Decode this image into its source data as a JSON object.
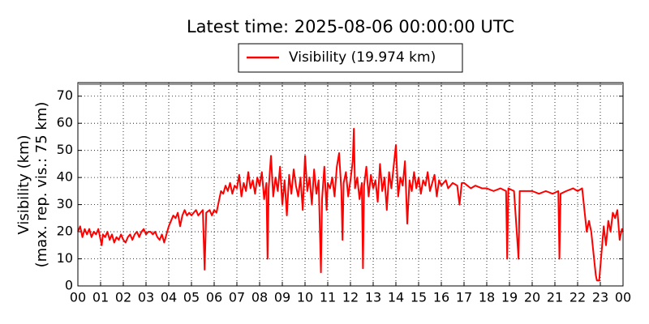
{
  "chart_data": {
    "type": "line",
    "title": "Latest time: 2025-08-06 00:00:00 UTC",
    "ylabel": [
      "Visibility (km)",
      "(max. rep. vis.: 75 km)"
    ],
    "xlim": [
      0,
      24
    ],
    "ylim": [
      0,
      75
    ],
    "yticks": [
      0,
      10,
      20,
      30,
      40,
      50,
      60,
      70
    ],
    "xticks": [
      {
        "value": 0,
        "label": "00"
      },
      {
        "value": 1,
        "label": "01"
      },
      {
        "value": 2,
        "label": "02"
      },
      {
        "value": 3,
        "label": "03"
      },
      {
        "value": 4,
        "label": "04"
      },
      {
        "value": 5,
        "label": "05"
      },
      {
        "value": 6,
        "label": "06"
      },
      {
        "value": 7,
        "label": "07"
      },
      {
        "value": 8,
        "label": "08"
      },
      {
        "value": 9,
        "label": "09"
      },
      {
        "value": 10,
        "label": "10"
      },
      {
        "value": 11,
        "label": "11"
      },
      {
        "value": 12,
        "label": "12"
      },
      {
        "value": 13,
        "label": "13"
      },
      {
        "value": 14,
        "label": "14"
      },
      {
        "value": 15,
        "label": "15"
      },
      {
        "value": 16,
        "label": "16"
      },
      {
        "value": 17,
        "label": "17"
      },
      {
        "value": 18,
        "label": "18"
      },
      {
        "value": 19,
        "label": "19"
      },
      {
        "value": 20,
        "label": "20"
      },
      {
        "value": 21,
        "label": "21"
      },
      {
        "value": 22,
        "label": "22"
      },
      {
        "value": 23,
        "label": "23"
      },
      {
        "value": 24,
        "label": "00"
      }
    ],
    "grid": true,
    "legend": "top",
    "x": [
      0,
      0.1,
      0.2,
      0.3,
      0.4,
      0.5,
      0.6,
      0.7,
      0.8,
      0.9,
      1.0,
      1.05,
      1.1,
      1.2,
      1.3,
      1.4,
      1.5,
      1.6,
      1.7,
      1.8,
      1.9,
      2.0,
      2.1,
      2.2,
      2.3,
      2.4,
      2.5,
      2.6,
      2.7,
      2.8,
      2.9,
      3.0,
      3.1,
      3.2,
      3.3,
      3.4,
      3.5,
      3.6,
      3.7,
      3.8,
      3.9,
      4.0,
      4.1,
      4.2,
      4.3,
      4.4,
      4.5,
      4.6,
      4.7,
      4.8,
      4.9,
      5.0,
      5.1,
      5.2,
      5.3,
      5.4,
      5.5,
      5.58,
      5.65,
      5.8,
      5.9,
      6.0,
      6.1,
      6.2,
      6.3,
      6.4,
      6.5,
      6.6,
      6.7,
      6.8,
      6.9,
      7.0,
      7.1,
      7.2,
      7.3,
      7.4,
      7.5,
      7.6,
      7.7,
      7.8,
      7.9,
      8.0,
      8.1,
      8.2,
      8.3,
      8.35,
      8.4,
      8.5,
      8.6,
      8.7,
      8.8,
      8.9,
      9.0,
      9.1,
      9.2,
      9.3,
      9.4,
      9.5,
      9.6,
      9.7,
      9.8,
      9.9,
      10.0,
      10.1,
      10.2,
      10.3,
      10.4,
      10.5,
      10.6,
      10.7,
      10.75,
      10.85,
      10.95,
      11.0,
      11.1,
      11.2,
      11.3,
      11.4,
      11.5,
      11.6,
      11.65,
      11.7,
      11.8,
      11.9,
      12.0,
      12.1,
      12.15,
      12.2,
      12.3,
      12.4,
      12.5,
      12.55,
      12.6,
      12.7,
      12.8,
      12.9,
      13.0,
      13.1,
      13.2,
      13.3,
      13.4,
      13.5,
      13.6,
      13.7,
      13.8,
      13.9,
      14.0,
      14.1,
      14.2,
      14.3,
      14.4,
      14.5,
      14.6,
      14.7,
      14.8,
      14.9,
      15.0,
      15.1,
      15.2,
      15.3,
      15.4,
      15.5,
      15.6,
      15.7,
      15.8,
      15.9,
      16.0,
      16.2,
      16.3,
      16.5,
      16.7,
      16.8,
      16.9,
      17.0,
      17.3,
      17.5,
      17.8,
      18.0,
      18.3,
      18.6,
      18.85,
      18.9,
      18.95,
      19.2,
      19.4,
      19.45,
      19.7,
      20.0,
      20.3,
      20.6,
      20.9,
      21.15,
      21.2,
      21.25,
      21.5,
      21.8,
      22.0,
      22.2,
      22.3,
      22.4,
      22.5,
      22.6,
      22.7,
      22.8,
      22.85,
      22.95,
      23.05,
      23.15,
      23.25,
      23.35,
      23.45,
      23.55,
      23.65,
      23.75,
      23.85,
      23.95,
      24.0
    ],
    "series": [
      {
        "name": "Visibility (19.974 km)",
        "color": "#ff0000",
        "values": [
          20,
          22,
          18,
          21,
          19,
          21,
          18,
          20,
          19,
          21,
          17,
          15,
          19,
          18,
          20,
          17,
          19,
          16,
          18,
          17,
          19,
          17,
          16,
          18,
          19,
          17,
          19,
          20,
          18,
          20,
          21,
          19,
          20,
          20,
          19,
          20,
          18,
          17,
          19,
          16,
          19,
          22,
          24,
          26,
          25,
          27,
          22,
          26,
          28,
          26,
          27,
          26,
          27,
          28,
          26,
          27,
          28,
          6,
          27,
          28,
          26,
          28,
          27,
          31,
          35,
          34,
          37,
          35,
          38,
          34,
          37,
          36,
          41,
          33,
          38,
          35,
          42,
          36,
          39,
          34,
          40,
          37,
          42,
          32,
          38,
          10,
          36,
          48,
          33,
          40,
          35,
          44,
          30,
          39,
          26,
          41,
          34,
          43,
          37,
          33,
          40,
          28,
          48,
          35,
          40,
          30,
          43,
          34,
          39,
          5,
          32,
          44,
          28,
          38,
          36,
          40,
          33,
          44,
          49,
          35,
          17,
          38,
          42,
          33,
          39,
          46,
          58,
          36,
          40,
          32,
          38,
          6.5,
          37,
          44,
          33,
          41,
          36,
          39,
          31,
          45,
          35,
          40,
          28,
          42,
          36,
          44,
          52,
          33,
          40,
          37,
          46,
          23,
          39,
          35,
          42,
          36,
          40,
          34,
          39,
          37,
          42,
          35,
          38,
          41,
          33,
          39,
          37,
          39,
          36,
          38,
          37,
          30,
          38,
          38,
          36,
          37,
          36,
          36,
          35,
          36,
          35,
          10,
          36,
          35,
          10,
          35,
          35,
          35,
          34,
          35,
          34,
          35,
          10,
          34,
          35,
          36,
          35,
          36,
          28,
          20,
          24,
          20,
          12,
          4,
          2,
          2,
          12,
          22,
          15,
          24,
          20,
          27,
          25,
          28,
          17,
          21,
          20
        ]
      }
    ]
  }
}
